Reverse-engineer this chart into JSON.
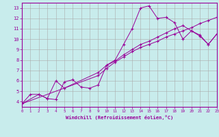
{
  "xlabel": "Windchill (Refroidissement éolien,°C)",
  "xlim": [
    0,
    23
  ],
  "ylim": [
    3.5,
    13.5
  ],
  "xticks": [
    0,
    1,
    2,
    3,
    4,
    5,
    6,
    7,
    8,
    9,
    10,
    11,
    12,
    13,
    14,
    15,
    16,
    17,
    18,
    19,
    20,
    21,
    22,
    23
  ],
  "yticks": [
    4,
    5,
    6,
    7,
    8,
    9,
    10,
    11,
    12,
    13
  ],
  "line_color": "#990099",
  "background_color": "#c8ecec",
  "grid_color": "#aaaaaa",
  "line1_x": [
    0,
    1,
    2,
    3,
    4,
    5,
    6,
    7,
    8,
    9,
    10,
    11,
    12,
    13,
    14,
    15,
    16,
    17,
    18,
    19,
    20,
    21,
    22,
    23
  ],
  "line1_y": [
    3.8,
    4.7,
    4.7,
    4.3,
    4.2,
    5.9,
    6.1,
    5.4,
    5.3,
    5.6,
    7.5,
    8.0,
    9.5,
    11.0,
    13.0,
    13.2,
    12.0,
    12.1,
    11.6,
    10.0,
    10.8,
    10.3,
    9.5,
    10.5
  ],
  "line2_x": [
    0,
    2,
    3,
    4,
    5,
    9,
    10,
    11,
    12,
    13,
    14,
    15,
    16,
    17,
    18,
    19,
    20,
    21,
    22,
    23
  ],
  "line2_y": [
    3.8,
    4.7,
    4.3,
    6.0,
    5.3,
    6.8,
    7.5,
    7.9,
    8.5,
    9.0,
    9.5,
    9.8,
    10.2,
    10.6,
    11.0,
    11.3,
    10.8,
    10.4,
    9.5,
    10.5
  ],
  "line3_x": [
    0,
    9,
    10,
    11,
    12,
    13,
    14,
    15,
    16,
    17,
    18,
    19,
    20,
    21,
    22,
    23
  ],
  "line3_y": [
    3.8,
    6.5,
    7.2,
    7.8,
    8.3,
    8.8,
    9.2,
    9.5,
    9.8,
    10.2,
    10.5,
    10.8,
    11.1,
    11.5,
    11.8,
    12.1
  ]
}
